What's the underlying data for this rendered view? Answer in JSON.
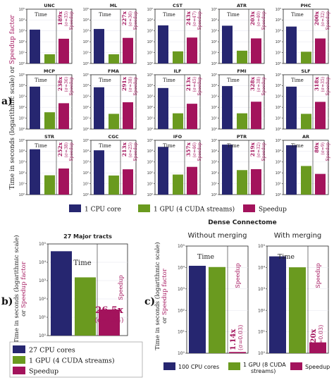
{
  "colors": {
    "cpu": "#262670",
    "gpu": "#6a9a1f",
    "speedup": "#a3135c",
    "speedup_text": "#a3135c",
    "frame": "#222222",
    "grid": "#e4e4ee"
  },
  "panel_a": {
    "label": "a)",
    "ylabel_black": "Time in seconds (logarithmic scale) or",
    "ylabel_colored": "Speedup factor",
    "time_label": "Time",
    "speedup_label": "Speedup",
    "legend": [
      "1 CPU core",
      "1 GPU (4 CUDA streams)",
      "Speedup"
    ]
  },
  "panel_b": {
    "label": "b)",
    "title": "27 Major tracts",
    "time_label": "Time",
    "speedup_label": "Speedup",
    "speedup_value": "26.5x",
    "speedup_sigma": "(σ=1.94)",
    "ylabel_black": "Time in seconds (logarithmic scale)",
    "ylabel_or": "or",
    "ylabel_colored": "Speedup factor",
    "legend": [
      "27 CPU cores",
      "1 GPU (4 CUDA streams)",
      "Speedup"
    ]
  },
  "panel_c": {
    "label": "c)",
    "title": "Dense Connectome",
    "time_label": "Time",
    "speedup_label": "Speedup",
    "ylabel_black": "Time in seconds (logarithmic scale)",
    "ylabel_or": "or",
    "ylabel_colored": "Speedup factor",
    "legend": [
      "100 CPU cores",
      "1 GPU (8 CUDA streams)",
      "Speedup"
    ]
  },
  "chart_data": [
    {
      "panel": "a",
      "type": "bar",
      "scale": "log",
      "ylim": [
        1,
        100000
      ],
      "yticks": [
        "10⁰",
        "10¹",
        "10²",
        "10³",
        "10⁴",
        "10⁵"
      ],
      "series_names": [
        "1 CPU core",
        "1 GPU (4 CUDA streams)",
        "Speedup"
      ],
      "tracts": [
        {
          "name": "UNC",
          "cpu": 1300,
          "gpu": 7,
          "speedup": 189,
          "label": "189x",
          "sigma": "(σ=35)"
        },
        {
          "name": "ML",
          "cpu": 1500,
          "gpu": 7,
          "speedup": 227,
          "label": "227x",
          "sigma": "(σ=36)"
        },
        {
          "name": "CST",
          "cpu": 3200,
          "gpu": 13,
          "speedup": 243,
          "label": "243x",
          "sigma": "(σ=47)"
        },
        {
          "name": "ATR",
          "cpu": 3000,
          "gpu": 15,
          "speedup": 203,
          "label": "203x",
          "sigma": "(σ=40)"
        },
        {
          "name": "PHC",
          "cpu": 2500,
          "gpu": 12,
          "speedup": 200,
          "label": "200x",
          "sigma": "(σ=32)"
        },
        {
          "name": "MCP",
          "cpu": 8000,
          "gpu": 35,
          "speedup": 238,
          "label": "238x",
          "sigma": "(σ=36)"
        },
        {
          "name": "FMA",
          "cpu": 7000,
          "gpu": 25,
          "speedup": 291,
          "label": "291x",
          "sigma": "(σ=38)"
        },
        {
          "name": "ILF",
          "cpu": 6000,
          "gpu": 28,
          "speedup": 213,
          "label": "213x",
          "sigma": "(σ=45)"
        },
        {
          "name": "FMI",
          "cpu": 9000,
          "gpu": 28,
          "speedup": 328,
          "label": "328x",
          "sigma": "(σ=38)"
        },
        {
          "name": "SLF",
          "cpu": 8000,
          "gpu": 25,
          "speedup": 318,
          "label": "318x",
          "sigma": "(σ=35)"
        },
        {
          "name": "STR",
          "cpu": 15000,
          "gpu": 60,
          "speedup": 252,
          "label": "252x",
          "sigma": "(σ=38)"
        },
        {
          "name": "CGC",
          "cpu": 12000,
          "gpu": 57,
          "speedup": 213,
          "label": "213x",
          "sigma": "(σ=25)"
        },
        {
          "name": "IFO",
          "cpu": 25000,
          "gpu": 70,
          "speedup": 357,
          "label": "357x",
          "sigma": "(σ=46)"
        },
        {
          "name": "PTR",
          "cpu": 40000,
          "gpu": 180,
          "speedup": 219,
          "label": "219x",
          "sigma": "(σ=32)"
        },
        {
          "name": "AR",
          "cpu": 35000,
          "gpu": 430,
          "speedup": 80,
          "label": "80x",
          "sigma": "(σ=9)"
        }
      ]
    },
    {
      "panel": "b",
      "type": "bar",
      "scale": "log",
      "title": "27 Major tracts",
      "ylim": [
        1,
        100000
      ],
      "yticks": [
        "10⁰",
        "10¹",
        "10²",
        "10³",
        "10⁴",
        "10⁵"
      ],
      "categories": [
        "27 CPU cores",
        "1 GPU (4 CUDA streams)",
        "Speedup"
      ],
      "values": [
        40000,
        1500,
        26.5
      ]
    },
    {
      "panel": "c",
      "type": "bar",
      "scale": "log",
      "title": "Dense Connectome",
      "ylim": [
        1,
        100000
      ],
      "yticks": [
        "10⁰",
        "10¹",
        "10²",
        "10³",
        "10⁴",
        "10⁵"
      ],
      "subplots": [
        {
          "title": "Without merging",
          "cpu": 12000,
          "gpu": 10500,
          "speedup": 1.14,
          "label": "1.14x",
          "sigma": "(σ=0.03)"
        },
        {
          "title": "With merging",
          "cpu": 33000,
          "gpu": 10200,
          "speedup": 3.2,
          "label": "3.20x",
          "sigma": "(σ=0.03)"
        }
      ]
    }
  ]
}
